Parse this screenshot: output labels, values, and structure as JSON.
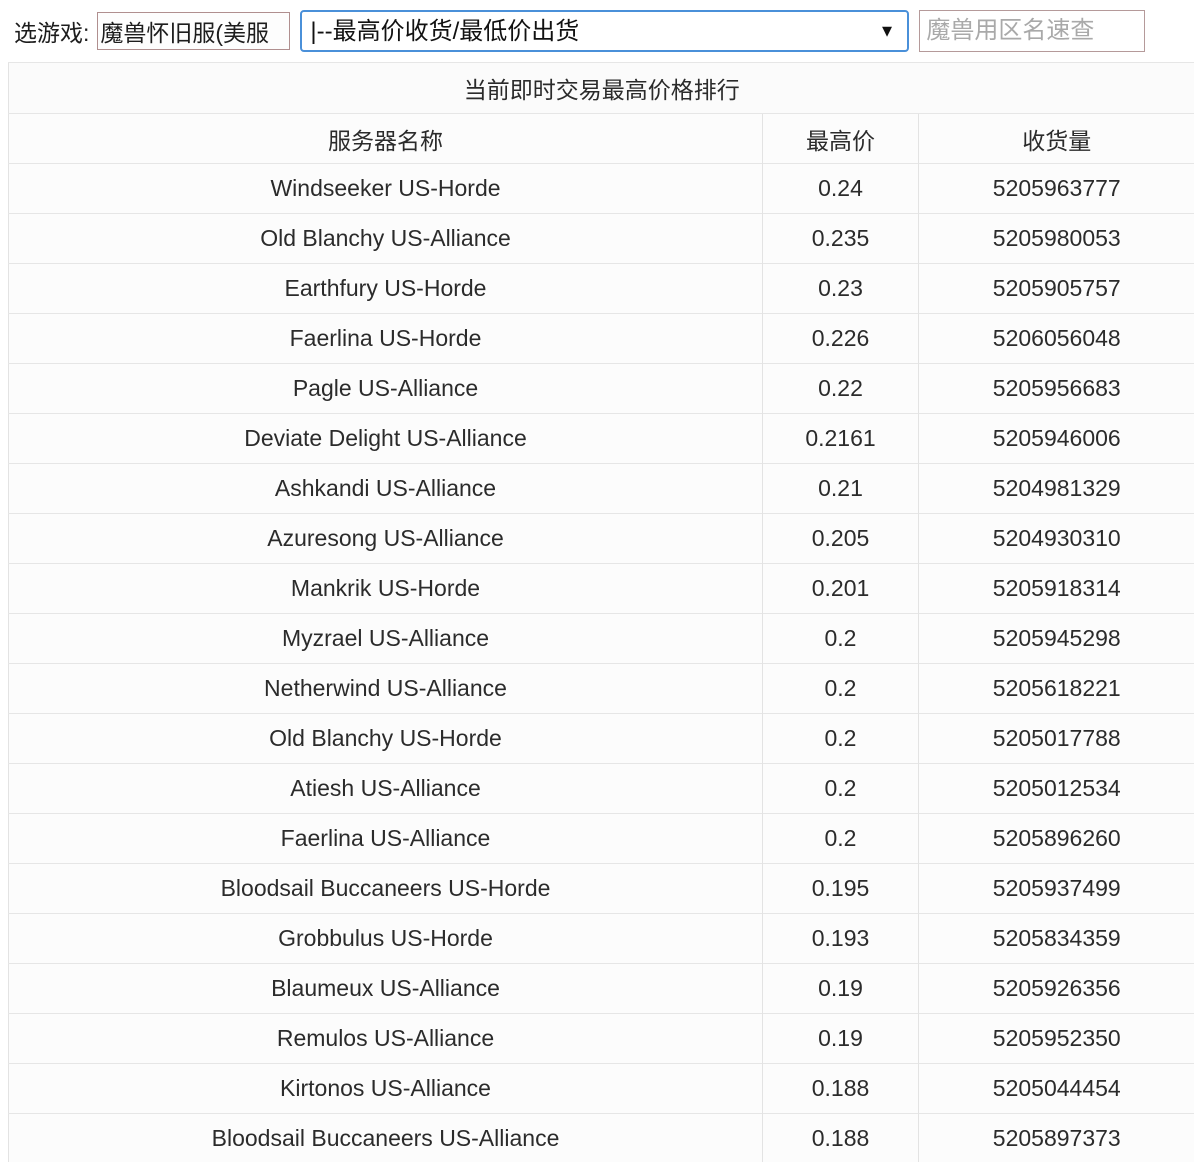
{
  "topbar": {
    "label": "选游戏:",
    "game_value": "魔兽怀旧服(美服",
    "mode_value": "|--最高价收货/最低价出货",
    "dropdown_arrow": "▼",
    "region_placeholder": "魔兽用区名速查"
  },
  "colors": {
    "select_border": "#4a90d9",
    "input_border": "#b08f8f",
    "row_border": "#e6e6e6",
    "text": "#2b2b2b",
    "placeholder": "#a9a9a9"
  },
  "table": {
    "title": "当前即时交易最高价格排行",
    "headers": [
      "服务器名称",
      "最高价",
      "收货量"
    ],
    "rows": [
      {
        "server": "Windseeker US-Horde",
        "price": "0.24",
        "volume": "5205963777"
      },
      {
        "server": "Old Blanchy US-Alliance",
        "price": "0.235",
        "volume": "5205980053"
      },
      {
        "server": "Earthfury US-Horde",
        "price": "0.23",
        "volume": "5205905757"
      },
      {
        "server": "Faerlina US-Horde",
        "price": "0.226",
        "volume": "5206056048"
      },
      {
        "server": "Pagle US-Alliance",
        "price": "0.22",
        "volume": "5205956683"
      },
      {
        "server": "Deviate Delight US-Alliance",
        "price": "0.2161",
        "volume": "5205946006"
      },
      {
        "server": "Ashkandi US-Alliance",
        "price": "0.21",
        "volume": "5204981329"
      },
      {
        "server": "Azuresong US-Alliance",
        "price": "0.205",
        "volume": "5204930310"
      },
      {
        "server": "Mankrik US-Horde",
        "price": "0.201",
        "volume": "5205918314"
      },
      {
        "server": "Myzrael US-Alliance",
        "price": "0.2",
        "volume": "5205945298"
      },
      {
        "server": "Netherwind US-Alliance",
        "price": "0.2",
        "volume": "5205618221"
      },
      {
        "server": "Old Blanchy US-Horde",
        "price": "0.2",
        "volume": "5205017788"
      },
      {
        "server": "Atiesh US-Alliance",
        "price": "0.2",
        "volume": "5205012534"
      },
      {
        "server": "Faerlina US-Alliance",
        "price": "0.2",
        "volume": "5205896260"
      },
      {
        "server": "Bloodsail Buccaneers US-Horde",
        "price": "0.195",
        "volume": "5205937499"
      },
      {
        "server": "Grobbulus US-Horde",
        "price": "0.193",
        "volume": "5205834359"
      },
      {
        "server": "Blaumeux US-Alliance",
        "price": "0.19",
        "volume": "5205926356"
      },
      {
        "server": "Remulos US-Alliance",
        "price": "0.19",
        "volume": "5205952350"
      },
      {
        "server": "Kirtonos US-Alliance",
        "price": "0.188",
        "volume": "5205044454"
      },
      {
        "server": "Bloodsail Buccaneers US-Alliance",
        "price": "0.188",
        "volume": "5205897373"
      }
    ]
  }
}
